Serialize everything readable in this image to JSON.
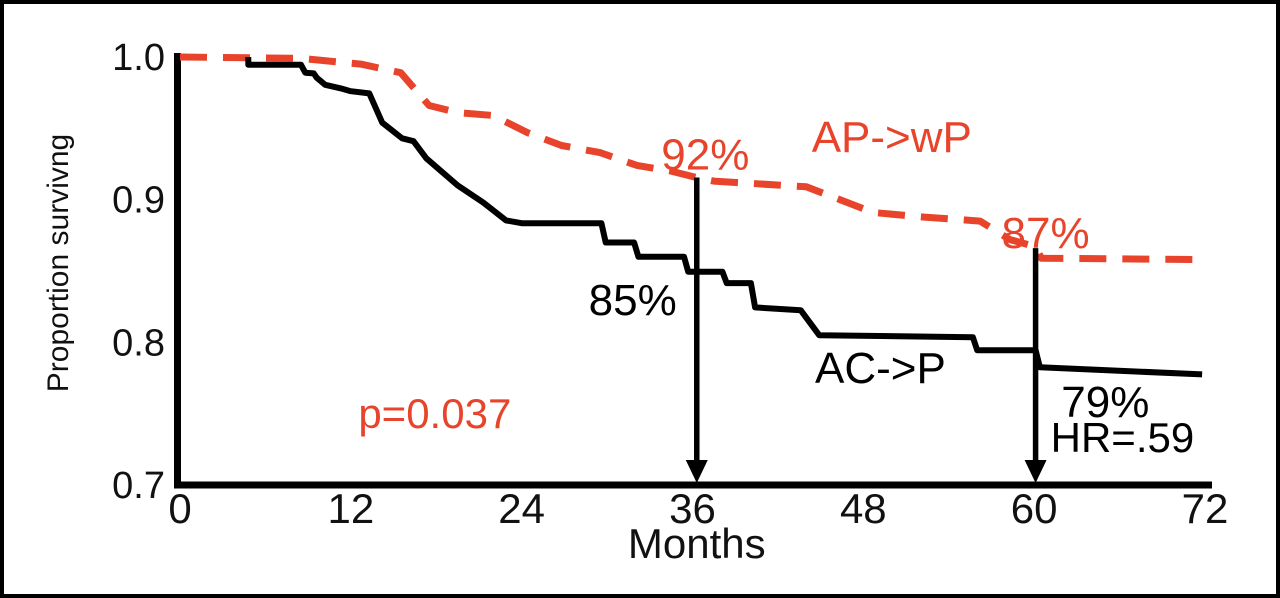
{
  "figure": {
    "background": "#ffffff",
    "frame_color": "#000000",
    "accent_red": "#E8432B",
    "curve_black": "#000000"
  },
  "chart_data": {
    "type": "line",
    "subtype": "kaplan-meier-survival",
    "title": "",
    "xlabel": "Months",
    "ylabel": "Proportion survivng",
    "xlim": [
      0,
      72.5
    ],
    "ylim": [
      0.7,
      1.0
    ],
    "grid": false,
    "legend_position": "inline-labels",
    "x_ticks": [
      {
        "value": 0,
        "label": "0"
      },
      {
        "value": 12,
        "label": "12"
      },
      {
        "value": 24,
        "label": "24"
      },
      {
        "value": 36,
        "label": "36"
      },
      {
        "value": 48,
        "label": "48"
      },
      {
        "value": 60,
        "label": "60"
      },
      {
        "value": 72,
        "label": "72"
      }
    ],
    "y_ticks": [
      {
        "value": 1.0,
        "label": "1.0"
      },
      {
        "value": 0.9,
        "label": "0.9"
      },
      {
        "value": 0.8,
        "label": "0.8"
      },
      {
        "value": 0.7,
        "label": "0.7"
      }
    ],
    "series": [
      {
        "name": "AP->wP",
        "color": "#E8432B",
        "style": "dashed",
        "points": [
          [
            0,
            1.0
          ],
          [
            8.5,
            0.999
          ],
          [
            12.7,
            0.995
          ],
          [
            15.5,
            0.989
          ],
          [
            17.5,
            0.966
          ],
          [
            19.5,
            0.961
          ],
          [
            22.0,
            0.959
          ],
          [
            24.4,
            0.947
          ],
          [
            26.8,
            0.938
          ],
          [
            29.5,
            0.933
          ],
          [
            32.1,
            0.924
          ],
          [
            34.5,
            0.92
          ],
          [
            36.3,
            0.9155
          ],
          [
            37.5,
            0.913
          ],
          [
            44.0,
            0.909
          ],
          [
            48.7,
            0.891
          ],
          [
            52.0,
            0.888
          ],
          [
            56.2,
            0.885
          ],
          [
            58.3,
            0.872
          ],
          [
            60.1,
            0.867
          ],
          [
            60.5,
            0.859
          ],
          [
            71.7,
            0.858
          ]
        ]
      },
      {
        "name": "AC->P",
        "color": "#000000",
        "style": "solid",
        "points": [
          [
            4.8,
            1.0
          ],
          [
            4.8,
            0.9945
          ],
          [
            8.5,
            0.9945
          ],
          [
            8.8,
            0.989
          ],
          [
            9.4,
            0.9885
          ],
          [
            9.6,
            0.9855
          ],
          [
            10.2,
            0.9805
          ],
          [
            11.3,
            0.978
          ],
          [
            12.0,
            0.976
          ],
          [
            13.3,
            0.9745
          ],
          [
            14.2,
            0.954
          ],
          [
            15.6,
            0.943
          ],
          [
            16.4,
            0.941
          ],
          [
            17.3,
            0.929
          ],
          [
            19.5,
            0.91
          ],
          [
            21.3,
            0.898
          ],
          [
            22.9,
            0.8855
          ],
          [
            24.0,
            0.8835
          ],
          [
            29.6,
            0.8835
          ],
          [
            29.9,
            0.87
          ],
          [
            31.9,
            0.87
          ],
          [
            32.2,
            0.86
          ],
          [
            35.4,
            0.86
          ],
          [
            35.7,
            0.8495
          ],
          [
            38.1,
            0.8495
          ],
          [
            38.4,
            0.8415
          ],
          [
            40.1,
            0.8415
          ],
          [
            40.4,
            0.8245
          ],
          [
            43.6,
            0.8225
          ],
          [
            44.9,
            0.805
          ],
          [
            55.7,
            0.8035
          ],
          [
            56.0,
            0.7945
          ],
          [
            60.1,
            0.7945
          ],
          [
            60.4,
            0.7825
          ],
          [
            71.8,
            0.7775
          ]
        ]
      }
    ],
    "annotations": [
      {
        "id": "pct-92",
        "text": "92%",
        "x": 36.9,
        "v": 0.921,
        "color": "#E8432B",
        "role": "value-label"
      },
      {
        "id": "ap-wp-label",
        "text": "AP->wP",
        "x": 50.0,
        "v": 0.9334,
        "color": "#E8432B",
        "role": "series-label"
      },
      {
        "id": "pct-87",
        "text": "87%",
        "x": 60.8,
        "v": 0.866,
        "color": "#E8432B",
        "role": "value-label"
      },
      {
        "id": "pct-85",
        "text": "85%",
        "x": 31.8,
        "v": 0.819,
        "color": "#000000",
        "role": "value-label"
      },
      {
        "id": "ac-p-label",
        "text": "AC->P",
        "x": 49.2,
        "v": 0.7715,
        "color": "#000000",
        "role": "series-label"
      },
      {
        "id": "pct-79",
        "text": "79%",
        "x": 65.0,
        "v": 0.7477,
        "color": "#000000",
        "role": "value-label"
      },
      {
        "id": "hr-value",
        "text": "HR=.59",
        "x": 66.2,
        "v": 0.7231,
        "color": "#000000",
        "role": "stat"
      },
      {
        "id": "p-value",
        "text": "p=0.037",
        "x": 17.9,
        "v": 0.7399,
        "color": "#E8432B",
        "role": "stat"
      }
    ],
    "arrows": [
      {
        "id": "arrow-36-months",
        "x": 36.3,
        "v_top": 0.9155,
        "color": "#000000"
      },
      {
        "id": "arrow-60-months",
        "x": 60.1,
        "v_top": 0.866,
        "color": "#000000"
      }
    ]
  }
}
